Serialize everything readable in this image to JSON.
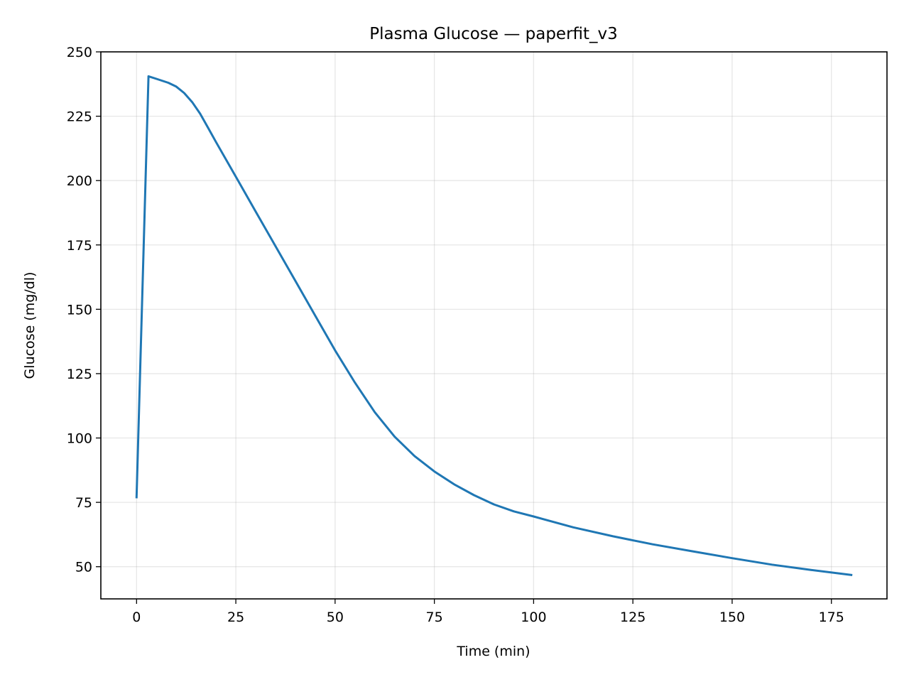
{
  "chart_data": {
    "type": "line",
    "title": "Plasma Glucose — paperfit_v3",
    "xlabel": "Time (min)",
    "ylabel": "Glucose (mg/dl)",
    "xlim": [
      -9,
      189
    ],
    "ylim": [
      37.5,
      250
    ],
    "x_ticks": [
      0,
      25,
      50,
      75,
      100,
      125,
      150,
      175
    ],
    "x_tick_labels": [
      "0",
      "25",
      "50",
      "75",
      "100",
      "125",
      "150",
      "175"
    ],
    "y_ticks": [
      50,
      75,
      100,
      125,
      150,
      175,
      200,
      225,
      250
    ],
    "y_tick_labels": [
      "50",
      "75",
      "100",
      "125",
      "150",
      "175",
      "200",
      "225",
      "250"
    ],
    "grid": true,
    "line_color": "#1f77b4",
    "series": [
      {
        "x": [
          0,
          3,
          5,
          8,
          10,
          12,
          14,
          16,
          18,
          20,
          25,
          30,
          35,
          40,
          45,
          50,
          55,
          60,
          65,
          70,
          75,
          80,
          85,
          90,
          95,
          100,
          110,
          120,
          130,
          140,
          150,
          160,
          170,
          180
        ],
        "values": [
          77,
          240.5,
          239.5,
          238,
          236.5,
          234,
          230.5,
          226,
          220.5,
          215,
          201.5,
          188,
          174.5,
          161,
          147.5,
          134,
          121.5,
          110,
          100.5,
          93,
          87,
          82,
          77.8,
          74.2,
          71.5,
          69.5,
          65.3,
          61.8,
          58.7,
          56,
          53.3,
          50.8,
          48.7,
          46.8
        ]
      }
    ]
  }
}
